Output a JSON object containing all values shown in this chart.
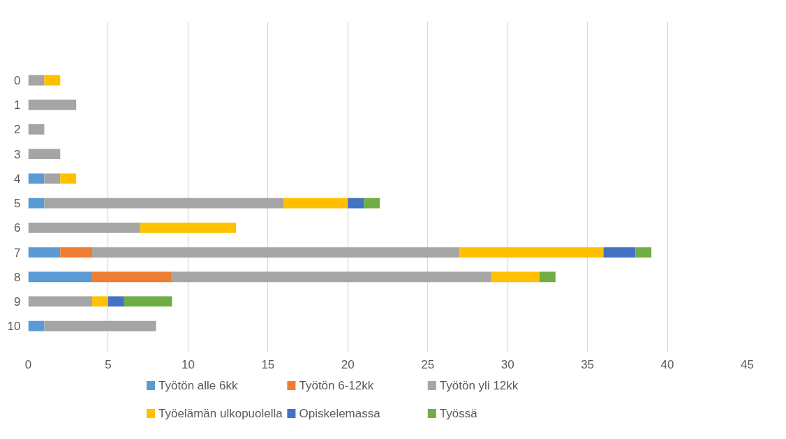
{
  "chart_data": {
    "type": "bar",
    "orientation": "horizontal",
    "stacked": true,
    "categories": [
      "0",
      "1",
      "2",
      "3",
      "4",
      "5",
      "6",
      "7",
      "8",
      "9",
      "10"
    ],
    "series": [
      {
        "name": "Työtön alle 6kk",
        "color": "#5b9bd5",
        "values": [
          null,
          null,
          null,
          null,
          1,
          1,
          null,
          2,
          4,
          null,
          1
        ]
      },
      {
        "name": "Työtön 6-12kk",
        "color": "#ed7d31",
        "values": [
          null,
          null,
          null,
          null,
          null,
          null,
          null,
          2,
          5,
          null,
          null
        ]
      },
      {
        "name": "Työtön yli 12kk",
        "color": "#a5a5a5",
        "values": [
          1,
          3,
          1,
          2,
          1,
          15,
          7,
          23,
          20,
          4,
          7
        ]
      },
      {
        "name": "Työelämän ulkopuolella",
        "color": "#ffc000",
        "values": [
          1,
          null,
          null,
          null,
          1,
          4,
          6,
          9,
          3,
          1,
          null
        ]
      },
      {
        "name": "Opiskelemassa",
        "color": "#4472c4",
        "values": [
          null,
          null,
          null,
          null,
          null,
          1,
          null,
          2,
          null,
          1,
          null
        ]
      },
      {
        "name": "Työssä",
        "color": "#70ad47",
        "values": [
          null,
          null,
          null,
          null,
          null,
          1,
          null,
          1,
          1,
          3,
          null
        ]
      }
    ],
    "xlim": [
      0,
      45
    ],
    "xticks": [
      0,
      5,
      10,
      15,
      20,
      25,
      30,
      35,
      40,
      45
    ],
    "grid": "x",
    "legend": "bottom"
  }
}
